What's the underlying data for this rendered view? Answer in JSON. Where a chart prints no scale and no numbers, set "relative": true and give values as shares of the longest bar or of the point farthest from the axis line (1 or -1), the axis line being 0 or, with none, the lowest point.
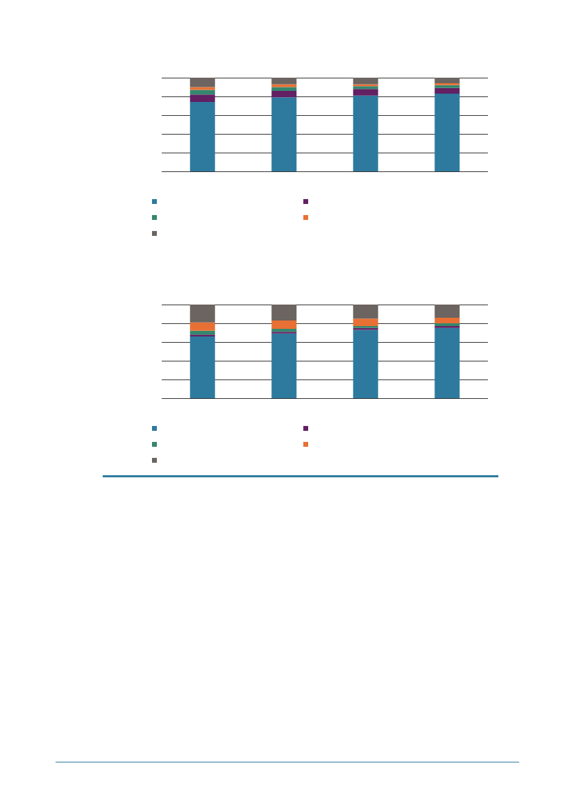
{
  "chart_data": [
    {
      "type": "bar",
      "stacked": true,
      "relative": true,
      "grid": "y",
      "categories": [
        null,
        null,
        null,
        null
      ],
      "series": [
        {
          "color": "#2e7a9e",
          "values": [
            0.74,
            0.79,
            0.81,
            0.83
          ]
        },
        {
          "color": "#632063",
          "values": [
            0.08,
            0.07,
            0.07,
            0.06
          ]
        },
        {
          "color": "#35876e",
          "values": [
            0.05,
            0.04,
            0.03,
            0.03
          ]
        },
        {
          "color": "#e87035",
          "values": [
            0.03,
            0.03,
            0.02,
            0.02
          ]
        },
        {
          "color": "#6b6460",
          "values": [
            0.1,
            0.07,
            0.07,
            0.06
          ]
        }
      ]
    },
    {
      "type": "bar",
      "stacked": true,
      "relative": true,
      "grid": "y",
      "categories": [
        null,
        null,
        null,
        null
      ],
      "series": [
        {
          "color": "#2e7a9e",
          "values": [
            0.66,
            0.69,
            0.73,
            0.75
          ]
        },
        {
          "color": "#632063",
          "values": [
            0.02,
            0.02,
            0.02,
            0.02
          ]
        },
        {
          "color": "#35876e",
          "values": [
            0.04,
            0.03,
            0.02,
            0.03
          ]
        },
        {
          "color": "#e87035",
          "values": [
            0.09,
            0.09,
            0.08,
            0.06
          ]
        },
        {
          "color": "#6b6460",
          "values": [
            0.19,
            0.17,
            0.15,
            0.14
          ]
        }
      ]
    }
  ]
}
